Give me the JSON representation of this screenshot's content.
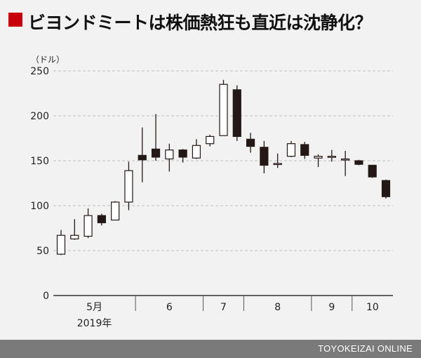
{
  "title": "ビヨンドミートは株価熱狂も直近は沈静化？",
  "footer": "TOYOKEIZAI ONLINE",
  "colors": {
    "accent": "#c8000b",
    "up_candle": "#ffffff",
    "down_candle": "#231815",
    "footer_bg": "#7a7a7a"
  },
  "chart_data": {
    "type": "candlestick",
    "ylabel": "（ドル）",
    "ylim": [
      0,
      250
    ],
    "yticks": [
      0,
      50,
      100,
      150,
      200,
      250
    ],
    "grid": true,
    "x_groups": [
      "5月",
      "6",
      "7",
      "8",
      "9",
      "10"
    ],
    "year_label": "2019年",
    "candles": [
      {
        "open": 46,
        "high": 73,
        "low": 45,
        "close": 67
      },
      {
        "open": 63,
        "high": 85,
        "low": 62,
        "close": 67
      },
      {
        "open": 66,
        "high": 97,
        "low": 64,
        "close": 89
      },
      {
        "open": 89,
        "high": 91,
        "low": 78,
        "close": 81
      },
      {
        "open": 84,
        "high": 105,
        "low": 84,
        "close": 104
      },
      {
        "open": 104,
        "high": 149,
        "low": 95,
        "close": 139
      },
      {
        "open": 156,
        "high": 187,
        "low": 126,
        "close": 151
      },
      {
        "open": 163,
        "high": 202,
        "low": 150,
        "close": 154
      },
      {
        "open": 152,
        "high": 169,
        "low": 138,
        "close": 162
      },
      {
        "open": 162,
        "high": 163,
        "low": 148,
        "close": 154
      },
      {
        "open": 153,
        "high": 174,
        "low": 152,
        "close": 167
      },
      {
        "open": 169,
        "high": 179,
        "low": 166,
        "close": 177
      },
      {
        "open": 178,
        "high": 240,
        "low": 178,
        "close": 235
      },
      {
        "open": 229,
        "high": 234,
        "low": 172,
        "close": 177
      },
      {
        "open": 174,
        "high": 181,
        "low": 159,
        "close": 166
      },
      {
        "open": 165,
        "high": 172,
        "low": 136,
        "close": 145
      },
      {
        "open": 147,
        "high": 158,
        "low": 142,
        "close": 147
      },
      {
        "open": 155,
        "high": 172,
        "low": 154,
        "close": 169
      },
      {
        "open": 168,
        "high": 171,
        "low": 152,
        "close": 156
      },
      {
        "open": 153,
        "high": 157,
        "low": 143,
        "close": 155
      },
      {
        "open": 155,
        "high": 162,
        "low": 149,
        "close": 155
      },
      {
        "open": 152,
        "high": 161,
        "low": 133,
        "close": 152
      },
      {
        "open": 150,
        "high": 151,
        "low": 145,
        "close": 146
      },
      {
        "open": 145,
        "high": 145,
        "low": 131,
        "close": 132
      },
      {
        "open": 128,
        "high": 129,
        "low": 108,
        "close": 110
      }
    ]
  }
}
